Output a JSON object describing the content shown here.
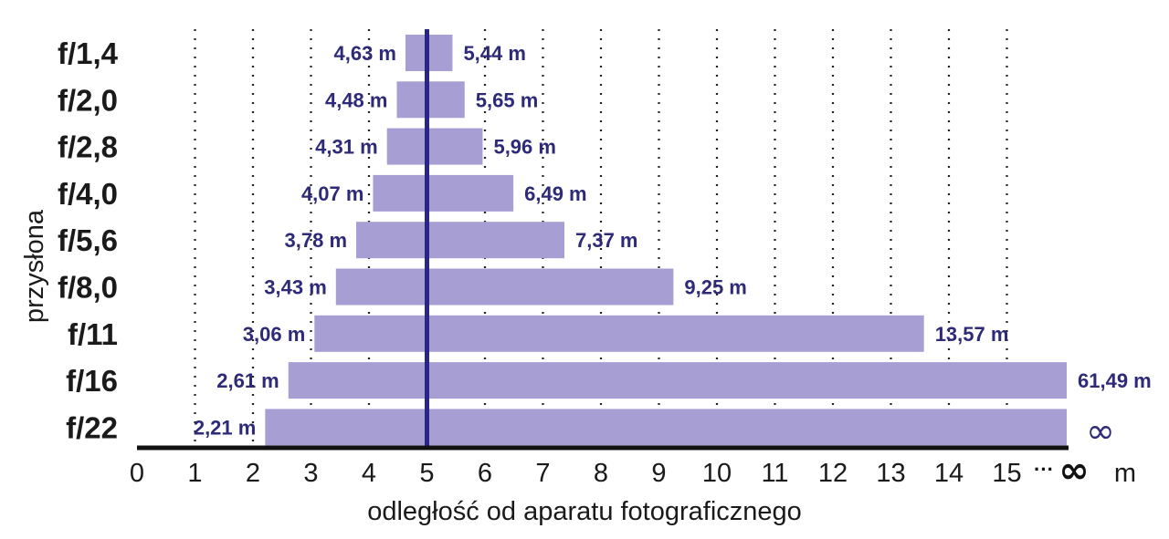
{
  "chart_data": {
    "type": "bar",
    "subtype": "floating-range-horizontal",
    "ylabel": "przysłona",
    "xlabel": "odległość od aparatu fotograficznego",
    "x_unit": "m",
    "focus_distance": 5,
    "x_ticks": [
      "0",
      "1",
      "2",
      "3",
      "4",
      "5",
      "6",
      "7",
      "8",
      "9",
      "10",
      "11",
      "12",
      "13",
      "14",
      "15",
      "∞"
    ],
    "x_ellipsis": "···",
    "xlim": [
      0,
      15.5
    ],
    "categories": [
      "f/1,4",
      "f/2,0",
      "f/2,8",
      "f/4,0",
      "f/5,6",
      "f/8,0",
      "f/11",
      "f/16",
      "f/22"
    ],
    "near": [
      4.63,
      4.48,
      4.31,
      4.07,
      3.78,
      3.43,
      3.06,
      2.61,
      2.21
    ],
    "far": [
      5.44,
      5.65,
      5.96,
      6.49,
      7.37,
      9.25,
      13.57,
      61.49,
      null
    ],
    "near_labels": [
      "4,63 m",
      "4,48 m",
      "4,31 m",
      "4,07 m",
      "3,78 m",
      "3,43 m",
      "3,06 m",
      "2,61 m",
      "2,21 m"
    ],
    "far_labels": [
      "5,44 m",
      "5,65 m",
      "5,96 m",
      "6,49 m",
      "7,37 m",
      "9,25 m",
      "13,57 m",
      "61,49 m",
      "∞"
    ],
    "grid": "vertical dotted",
    "colors": {
      "bar": "#a79fd4",
      "focus_line": "#2b2588",
      "label": "#2e2a78",
      "axis": "#111111"
    }
  }
}
